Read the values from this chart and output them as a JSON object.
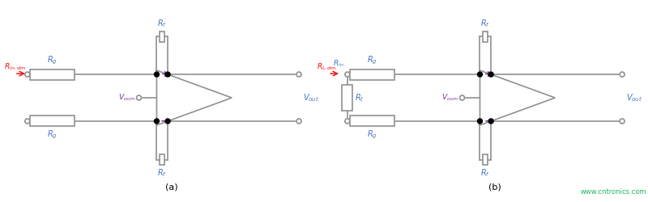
{
  "fig_width": 8.0,
  "fig_height": 2.5,
  "dpi": 100,
  "bg_color": "#ffffff",
  "line_color": "#909090",
  "text_color_blue": "#4472c4",
  "text_color_purple": "#7030a0",
  "text_color_red": "#ff0000",
  "text_color_green": "#00b050",
  "label_a": "(a)",
  "label_b": "(b)",
  "watermark": "www.cntronics.com"
}
